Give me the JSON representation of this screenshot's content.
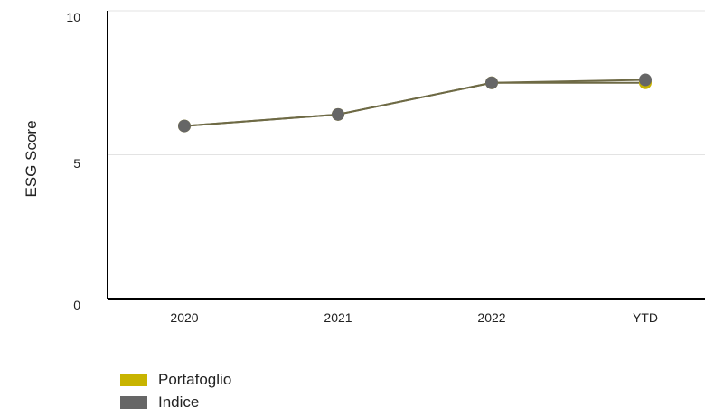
{
  "chart_data": {
    "type": "line",
    "title": "",
    "xlabel": "",
    "ylabel": "ESG Score",
    "categories": [
      "2020",
      "2021",
      "2022",
      "YTD"
    ],
    "ylim": [
      0,
      10
    ],
    "yticks": [
      "0",
      "5",
      "10"
    ],
    "grid": true,
    "legend_position": "bottom-left",
    "series": [
      {
        "name": "Portafoglio",
        "values": [
          6.0,
          6.4,
          7.5,
          7.5
        ],
        "color": "#c8b400"
      },
      {
        "name": "Indice",
        "values": [
          6.0,
          6.4,
          7.5,
          7.6
        ],
        "color": "#666666"
      }
    ],
    "line_color": "#6e6a45"
  }
}
